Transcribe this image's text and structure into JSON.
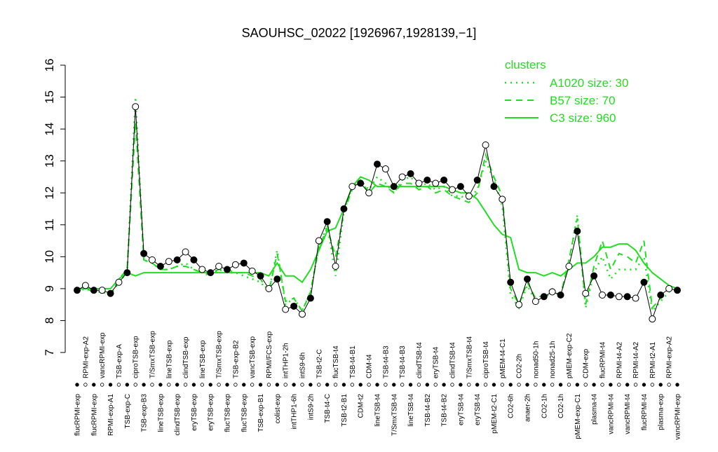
{
  "chart_data": {
    "type": "line",
    "title": "SAOUHSC_02022 [1926967,1928139,−1]",
    "categories": [
      "flucRPMI-exp",
      "RPMI-exp-A2",
      "flucRPMI-exp",
      "vancRPMI-exp",
      "RPMI-exp-A1",
      "TSB-exp-A",
      "TSB-exp-C",
      "ciproTSB-exp",
      "TSB-exp-B3",
      "T/SmxTSB-exp",
      "lineTSB-exp",
      "lineTSB-exp",
      "clindTSB-exp",
      "clindTSB-exp",
      "eryTSB-exp",
      "lineTSB-exp",
      "eryTSB-exp",
      "T/SmxTSB-exp",
      "flucTSB-exp",
      "TSB-exp-B2",
      "flucTSB-exp",
      "vancTSB-exp",
      "TSB-exp-B1",
      "RPMI/FCS-exp",
      "colist-exp",
      "intTHP1-2h",
      "intTHP1-6h",
      "intS9-6h",
      "intS9-2h",
      "TSB-t2-C",
      "TSB-t4-C",
      "flucTSB-t4",
      "TSB-t2-B1",
      "TSB-t4-B1",
      "CDM-t2",
      "CDM-t4",
      "lineTSB-t4",
      "TSB-t4-B3",
      "T/SmxTSB-t4",
      "TSB-t4-B3",
      "lineTSB-t4",
      "clindTSB-t4",
      "TSB-t4-B2",
      "eryTSB-t4",
      "TSB-t4-B2",
      "clindTSB-t4",
      "eryTSB-t4",
      "T/SmxTSB-t4",
      "eryTSB-t4",
      "ciproTSB-t4",
      "pMEM-t2-C1",
      "pMEM-t4-C1",
      "CO2-6h",
      "CO2-2h",
      "anaer-2h",
      "nonad50-1h",
      "CO2-1h",
      "nonad25-1h",
      "CO2-1h",
      "pMEM-exp-C2",
      "pMEM-exp-C1",
      "CDM-exp",
      "plasma-t4",
      "flucRPMI-t4",
      "vancRPMI-t4",
      "RPMI-t4-A2",
      "vancRPMI-t4",
      "RPMI-t4-A2",
      "flucRPMI-t4",
      "RPMI-t2-A1",
      "plasma-exp",
      "RPMI-exp-A2",
      "vancRPMI-exp"
    ],
    "values": [
      8.95,
      9.1,
      8.95,
      8.95,
      8.85,
      9.2,
      9.5,
      14.7,
      10.1,
      9.9,
      9.7,
      9.85,
      9.9,
      10.15,
      9.9,
      9.6,
      9.5,
      9.7,
      9.6,
      9.75,
      9.8,
      9.55,
      9.4,
      9.0,
      9.3,
      8.35,
      8.45,
      8.2,
      8.7,
      10.5,
      11.1,
      9.7,
      11.5,
      12.2,
      12.3,
      12.0,
      12.9,
      12.75,
      12.2,
      12.5,
      12.6,
      12.3,
      12.4,
      12.3,
      12.4,
      12.1,
      12.2,
      11.9,
      12.4,
      13.5,
      12.2,
      11.8,
      9.2,
      8.5,
      9.3,
      8.6,
      8.75,
      8.9,
      8.8,
      9.7,
      10.8,
      8.85,
      9.4,
      8.8,
      8.8,
      8.75,
      8.75,
      8.7,
      9.2,
      8.05,
      8.8,
      9.0,
      8.95
    ],
    "color": "#000000",
    "legend_title": "clusters",
    "legend": "topright",
    "series": [
      {
        "name": "A1020 size: 30",
        "color": "#22dd22",
        "style": "dotted",
        "values": [
          8.9,
          9.0,
          8.9,
          8.9,
          8.8,
          9.2,
          9.5,
          15.0,
          9.9,
          9.8,
          9.6,
          9.6,
          9.7,
          9.8,
          9.6,
          9.5,
          9.4,
          9.6,
          9.5,
          9.5,
          9.4,
          9.3,
          9.2,
          8.9,
          10.2,
          8.5,
          8.7,
          8.3,
          8.9,
          10.3,
          11.0,
          9.4,
          11.4,
          12.2,
          12.4,
          12.1,
          12.5,
          12.3,
          12.0,
          12.4,
          12.5,
          12.2,
          12.3,
          12.1,
          12.2,
          11.9,
          11.9,
          11.8,
          12.1,
          13.0,
          12.4,
          11.6,
          8.8,
          8.4,
          9.1,
          8.6,
          8.7,
          8.9,
          8.8,
          9.8,
          11.3,
          8.4,
          9.5,
          10.0,
          9.3,
          9.6,
          9.6,
          9.6,
          10.0,
          8.3,
          8.6,
          8.9,
          9.0
        ]
      },
      {
        "name": "B57 size: 70",
        "color": "#22dd22",
        "style": "dashed",
        "values": [
          9.0,
          9.0,
          8.9,
          8.9,
          8.8,
          9.3,
          9.6,
          14.2,
          9.9,
          9.8,
          9.6,
          9.6,
          9.7,
          9.7,
          9.6,
          9.5,
          9.5,
          9.6,
          9.6,
          9.5,
          9.5,
          9.4,
          9.3,
          8.9,
          10.1,
          8.6,
          8.7,
          8.3,
          8.9,
          10.3,
          10.9,
          10.0,
          11.4,
          12.1,
          12.4,
          12.0,
          12.3,
          12.2,
          12.0,
          12.3,
          12.3,
          12.1,
          12.2,
          12.0,
          12.1,
          11.9,
          11.8,
          11.7,
          12.0,
          13.2,
          12.5,
          11.9,
          9.0,
          8.5,
          9.2,
          8.7,
          8.8,
          9.0,
          8.8,
          9.9,
          11.2,
          8.5,
          9.7,
          10.5,
          9.6,
          10.1,
          10.0,
          9.8,
          10.5,
          8.4,
          8.7,
          9.0,
          9.0
        ]
      },
      {
        "name": "C3 size: 960",
        "color": "#22dd22",
        "style": "solid",
        "values": [
          9.0,
          9.0,
          9.0,
          9.0,
          9.0,
          9.3,
          9.5,
          9.4,
          9.5,
          9.5,
          9.5,
          9.5,
          9.5,
          9.5,
          9.5,
          9.5,
          9.5,
          9.5,
          9.5,
          9.5,
          9.5,
          9.5,
          9.5,
          9.4,
          9.8,
          9.4,
          9.4,
          9.2,
          9.6,
          10.2,
          10.8,
          10.9,
          11.5,
          12.2,
          12.5,
          12.4,
          12.2,
          12.2,
          12.2,
          12.2,
          12.2,
          12.2,
          12.2,
          12.2,
          12.2,
          12.1,
          12.0,
          12.0,
          11.8,
          11.4,
          11.0,
          10.7,
          10.6,
          9.6,
          9.5,
          9.5,
          9.4,
          9.5,
          9.4,
          9.6,
          9.8,
          9.8,
          10.0,
          10.3,
          10.3,
          10.4,
          10.4,
          10.2,
          9.8,
          9.5,
          9.3,
          9.1,
          9.0
        ]
      }
    ],
    "ylim": [
      7,
      16
    ],
    "yticks": [
      7,
      8,
      9,
      10,
      11,
      12,
      13,
      14,
      15,
      16
    ]
  }
}
